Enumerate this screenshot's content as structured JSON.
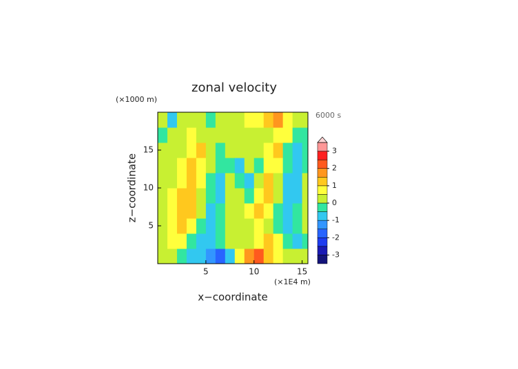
{
  "chart_data": {
    "type": "contour",
    "title": "zonal velocity",
    "y_unit": "(×1000 m)",
    "x_unit": "(×1E4 m)",
    "time_label": "6000 s",
    "x_label": "x−coordinate",
    "y_label": "z−coordinate",
    "xlim": [
      0,
      15.6
    ],
    "ylim": [
      0,
      20
    ],
    "xticks": [
      5,
      10,
      15
    ],
    "yticks": [
      5,
      10,
      15
    ],
    "x": [
      0.5,
      1.5,
      2.5,
      3.5,
      4.5,
      5.5,
      6.5,
      7.5,
      8.5,
      9.5,
      10.5,
      11.5,
      12.5,
      13.5,
      14.5,
      15.5
    ],
    "y": [
      1,
      3,
      5,
      7,
      9,
      11,
      13,
      15,
      17,
      19
    ],
    "z": [
      [
        0,
        0.2,
        -0.5,
        -0.8,
        -1,
        -1.5,
        -2,
        -1,
        0.5,
        1.5,
        2,
        1,
        0.5,
        0.2,
        0,
        0
      ],
      [
        0.2,
        0.5,
        0.8,
        -0.5,
        -1,
        -0.8,
        -0.3,
        0,
        0,
        0.3,
        0.8,
        1,
        0.8,
        -0.5,
        -0.8,
        -0.3
      ],
      [
        0.3,
        0.8,
        1,
        0.5,
        -0.5,
        -0.8,
        -0.3,
        0.2,
        0,
        0.3,
        0.5,
        0.3,
        -0.5,
        -0.8,
        -0.5,
        0
      ],
      [
        0.3,
        0.5,
        1,
        1,
        0,
        -0.6,
        -0.5,
        0.2,
        0.2,
        0.5,
        1,
        0.5,
        -0.3,
        -1,
        -0.5,
        0.2
      ],
      [
        0.2,
        0.5,
        1,
        1,
        0.3,
        -0.5,
        -0.6,
        0.1,
        0.3,
        -0.3,
        0.8,
        1,
        0,
        -1,
        -0.8,
        0
      ],
      [
        0,
        0.3,
        0.8,
        1,
        0.5,
        -0.3,
        -0.8,
        0,
        -0.5,
        -0.8,
        0.3,
        1,
        0.3,
        -0.8,
        -1,
        0
      ],
      [
        0,
        0.2,
        0.5,
        1,
        0.6,
        0,
        -0.5,
        -0.3,
        -1,
        0.2,
        -0.3,
        0.8,
        0.5,
        -0.5,
        -1,
        -0.3
      ],
      [
        0,
        0,
        0.3,
        0.8,
        1,
        0.3,
        -0.3,
        0.3,
        0,
        0.3,
        0,
        0.5,
        1,
        -0.3,
        -0.8,
        -0.5
      ],
      [
        -0.3,
        0,
        0.2,
        0.5,
        0.3,
        0.3,
        0,
        0,
        0.2,
        0,
        0.3,
        0,
        0.5,
        0.5,
        -0.3,
        -0.5
      ],
      [
        0,
        -0.8,
        0,
        0.3,
        0,
        -0.5,
        0,
        0,
        0.3,
        0.5,
        0.8,
        1,
        1.5,
        0.8,
        0.3,
        0
      ]
    ],
    "levels": [
      -3.5,
      -3,
      -2.5,
      -2,
      -1.5,
      -1,
      -0.5,
      0,
      0.5,
      1,
      1.5,
      2,
      2.5,
      3,
      3.5
    ],
    "colors": [
      "#14147a",
      "#1a1ab4",
      "#1e3cf0",
      "#2864ff",
      "#3296ff",
      "#32c8f0",
      "#32e6a0",
      "#c8f032",
      "#ffff3c",
      "#ffc81e",
      "#ff961e",
      "#ff5a1e",
      "#ff2020",
      "#ff9696"
    ],
    "extend_color": "#ffd2d2",
    "cticks": [
      -3,
      -2,
      -1,
      0,
      1,
      2,
      3
    ]
  }
}
